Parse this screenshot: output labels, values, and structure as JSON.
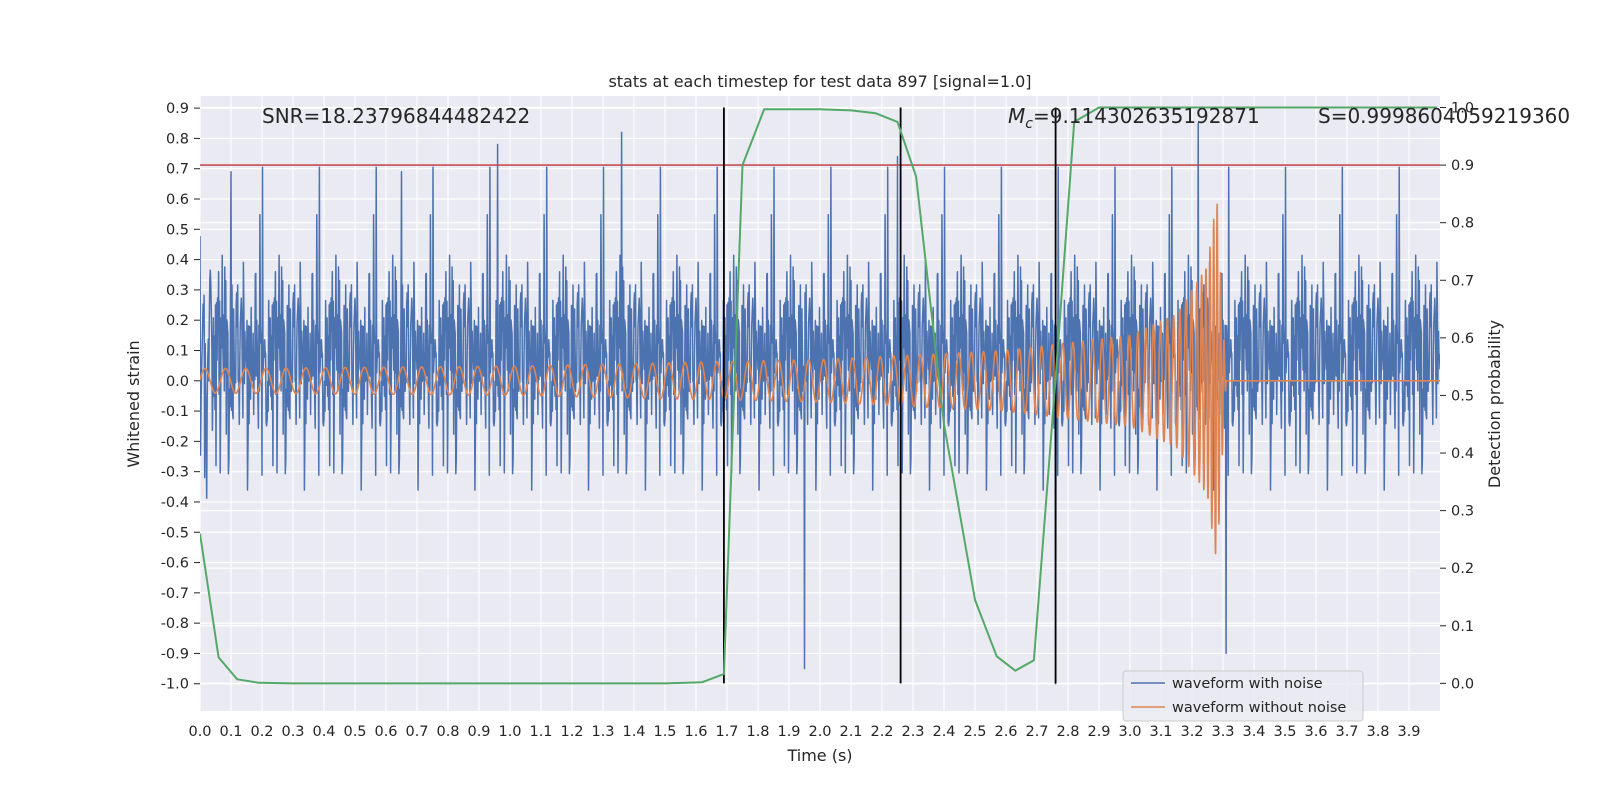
{
  "chart_data": {
    "type": "line",
    "title": "stats at each timestep for test data 897 [signal=1.0]",
    "xlabel": "Time (s)",
    "ylabel": "Whitened strain",
    "y2label": "Detection probability",
    "xlim": [
      0.0,
      4.0
    ],
    "ylim": [
      -1.09,
      0.94
    ],
    "y2lim": [
      -0.048,
      1.02
    ],
    "grid": true,
    "x_ticks": [
      "0.0",
      "0.1",
      "0.2",
      "0.3",
      "0.4",
      "0.5",
      "0.6",
      "0.7",
      "0.8",
      "0.9",
      "1.0",
      "1.1",
      "1.2",
      "1.3",
      "1.4",
      "1.5",
      "1.6",
      "1.7",
      "1.8",
      "1.9",
      "2.0",
      "2.1",
      "2.2",
      "2.3",
      "2.4",
      "2.5",
      "2.6",
      "2.7",
      "2.8",
      "2.9",
      "3.0",
      "3.1",
      "3.2",
      "3.3",
      "3.4",
      "3.5",
      "3.6",
      "3.7",
      "3.8",
      "3.9"
    ],
    "y_ticks": [
      "0.9",
      "0.8",
      "0.7",
      "0.6",
      "0.5",
      "0.4",
      "0.3",
      "0.2",
      "0.1",
      "0.0",
      "-0.1",
      "-0.2",
      "-0.3",
      "-0.4",
      "-0.5",
      "-0.6",
      "-0.7",
      "-0.8",
      "-0.9",
      "-1.0"
    ],
    "y2_ticks": [
      "1.0",
      "0.9",
      "0.8",
      "0.7",
      "0.6",
      "0.5",
      "0.4",
      "0.3",
      "0.2",
      "0.1",
      "0.0"
    ],
    "annotations": {
      "snr": "SNR=18.23796844482422",
      "mc_symbol": "M",
      "mc_sub": "c",
      "mc_value": "=9.114302635192871",
      "s": "S=0.9998604059219360"
    },
    "threshold": {
      "axis": "y2",
      "value": 0.9,
      "color": "#c44e52"
    },
    "vlines": [
      1.69,
      2.26,
      2.76
    ],
    "series": [
      {
        "name": "waveform with noise",
        "color": "#4c72b0",
        "axis": "y",
        "description": "noisy whitened strain, samples within about +-0.5 with spikes to about +-0.95",
        "amplitude_envelope": {
          "t": [
            0.0,
            4.0
          ],
          "a": [
            0.3,
            0.3
          ]
        },
        "peak_spikes": [
          [
            0.1,
            0.69
          ],
          [
            0.65,
            0.69
          ],
          [
            0.96,
            0.78
          ],
          [
            1.36,
            0.82
          ],
          [
            2.25,
            0.74
          ],
          [
            3.22,
            0.85
          ],
          [
            3.31,
            -0.9
          ],
          [
            2.76,
            -1.0
          ],
          [
            1.95,
            -0.95
          ]
        ]
      },
      {
        "name": "waveform without noise",
        "color": "#dd8452",
        "axis": "y",
        "description": "chirp signal, amplitude and frequency rising until merger near t=3.28s then ringdown to zero",
        "amplitude_envelope": {
          "t": [
            0.0,
            1.0,
            2.0,
            2.6,
            3.0,
            3.15,
            3.25,
            3.28,
            3.31,
            4.0
          ],
          "a": [
            0.04,
            0.048,
            0.07,
            0.1,
            0.15,
            0.22,
            0.38,
            0.61,
            0.0,
            0.0
          ]
        },
        "frequency_hz": {
          "t": [
            0.0,
            1.0,
            2.0,
            2.6,
            3.0,
            3.2,
            3.28
          ],
          "f": [
            15,
            17,
            21,
            26,
            35,
            55,
            90
          ]
        }
      },
      {
        "name": "detection probability",
        "color": "#55a868",
        "axis": "y2",
        "x": [
          0.0,
          0.06,
          0.12,
          0.19,
          0.3,
          1.0,
          1.5,
          1.62,
          1.69,
          1.75,
          1.82,
          2.0,
          2.1,
          2.18,
          2.25,
          2.31,
          2.4,
          2.5,
          2.57,
          2.63,
          2.69,
          2.76,
          2.82,
          2.9,
          3.0,
          3.5,
          3.99
        ],
        "values": [
          0.26,
          0.045,
          0.007,
          0.001,
          0.0,
          0.0,
          0.0,
          0.002,
          0.016,
          0.9,
          0.997,
          0.997,
          0.995,
          0.99,
          0.975,
          0.88,
          0.45,
          0.145,
          0.047,
          0.022,
          0.04,
          0.53,
          0.975,
          1.0,
          1.0,
          1.0,
          1.0
        ]
      }
    ],
    "legend": {
      "placement": "lower-right",
      "entries": [
        "waveform with noise",
        "waveform without noise"
      ]
    }
  }
}
